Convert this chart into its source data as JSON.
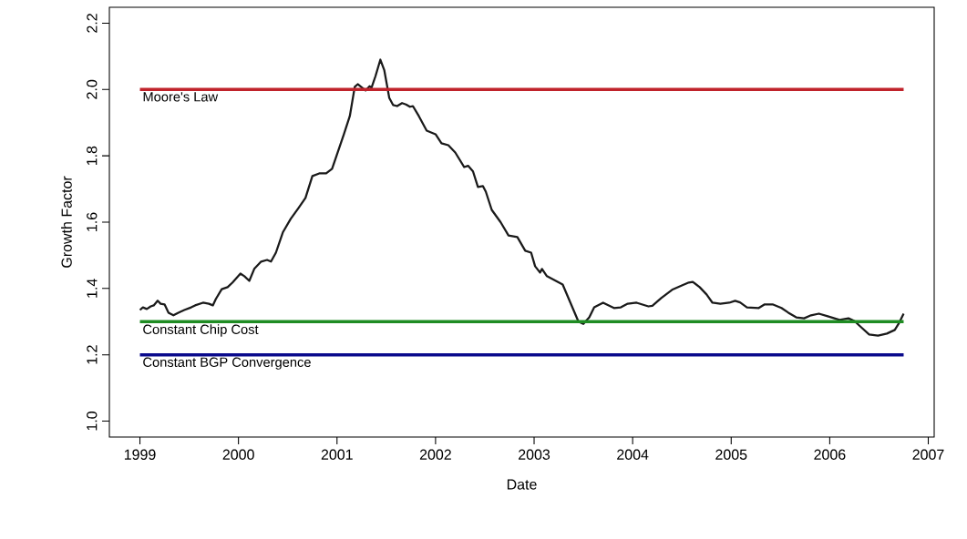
{
  "chart_data": {
    "type": "line",
    "xlabel": "Date",
    "ylabel": "Growth Factor",
    "xlim": [
      1998.69,
      2007.06
    ],
    "ylim": [
      0.952,
      2.248
    ],
    "xticks": [
      1999,
      2000,
      2001,
      2002,
      2003,
      2004,
      2005,
      2006,
      2007
    ],
    "yticks": [
      {
        "value": 1,
        "label": "1.0"
      },
      {
        "value": 1.2,
        "label": "1.2"
      },
      {
        "value": 1.4,
        "label": "1.4"
      },
      {
        "value": 1.6,
        "label": "1.6"
      },
      {
        "value": 1.8,
        "label": "1.8"
      },
      {
        "value": 2,
        "label": "2.0"
      },
      {
        "value": 2.2,
        "label": "2.2"
      }
    ],
    "grid": false,
    "ref_lines": [
      {
        "axis": "y",
        "value": 2.0,
        "label": "Moore's Law",
        "color": "#c0232b"
      },
      {
        "axis": "y",
        "value": 1.3,
        "label": "Constant Chip Cost",
        "color": "#1f8c23"
      },
      {
        "axis": "y",
        "value": 1.2,
        "label": "Constant BGP Convergence",
        "color": "#0a0a8c"
      }
    ],
    "series": [
      {
        "color": "#1a1a1a",
        "x": [
          1999.0,
          1999.03,
          1999.07,
          1999.11,
          1999.14,
          1999.18,
          1999.21,
          1999.25,
          1999.29,
          1999.34,
          1999.39,
          1999.45,
          1999.52,
          1999.56,
          1999.64,
          1999.7,
          1999.74,
          1999.77,
          1999.83,
          1999.89,
          1999.94,
          2000.02,
          2000.06,
          2000.11,
          2000.16,
          2000.23,
          2000.29,
          2000.33,
          2000.38,
          2000.45,
          2000.53,
          2000.61,
          2000.68,
          2000.75,
          2000.82,
          2000.89,
          2000.95,
          2001.07,
          2001.13,
          2001.18,
          2001.21,
          2001.29,
          2001.33,
          2001.35,
          2001.39,
          2001.44,
          2001.48,
          2001.53,
          2001.57,
          2001.61,
          2001.66,
          2001.7,
          2001.74,
          2001.77,
          2001.83,
          2001.91,
          2002.0,
          2002.06,
          2002.13,
          2002.2,
          2002.29,
          2002.33,
          2002.38,
          2002.43,
          2002.48,
          2002.51,
          2002.57,
          2002.66,
          2002.74,
          2002.83,
          2002.91,
          2002.97,
          2003.01,
          2003.06,
          2003.08,
          2003.13,
          2003.29,
          2003.45,
          2003.5,
          2003.56,
          2003.61,
          2003.7,
          2003.81,
          2003.88,
          2003.95,
          2004.04,
          2004.16,
          2004.2,
          2004.29,
          2004.4,
          2004.5,
          2004.57,
          2004.61,
          2004.68,
          2004.75,
          2004.81,
          2004.89,
          2004.98,
          2005.04,
          2005.09,
          2005.16,
          2005.28,
          2005.34,
          2005.42,
          2005.51,
          2005.58,
          2005.66,
          2005.74,
          2005.81,
          2005.89,
          2005.98,
          2006.1,
          2006.19,
          2006.25,
          2006.33,
          2006.4,
          2006.49,
          2006.58,
          2006.66,
          2006.7,
          2006.75
        ],
        "values": [
          1.335,
          1.343,
          1.338,
          1.346,
          1.349,
          1.363,
          1.354,
          1.352,
          1.327,
          1.319,
          1.327,
          1.335,
          1.343,
          1.349,
          1.357,
          1.354,
          1.349,
          1.368,
          1.398,
          1.404,
          1.418,
          1.445,
          1.437,
          1.423,
          1.459,
          1.481,
          1.486,
          1.481,
          1.508,
          1.569,
          1.61,
          1.643,
          1.673,
          1.739,
          1.747,
          1.747,
          1.761,
          1.865,
          1.92,
          2.008,
          2.016,
          1.997,
          2.01,
          2.005,
          2.04,
          2.09,
          2.058,
          1.975,
          1.953,
          1.95,
          1.959,
          1.955,
          1.948,
          1.95,
          1.92,
          1.876,
          1.865,
          1.838,
          1.832,
          1.81,
          1.766,
          1.77,
          1.753,
          1.706,
          1.709,
          1.692,
          1.637,
          1.6,
          1.56,
          1.555,
          1.514,
          1.508,
          1.467,
          1.448,
          1.459,
          1.437,
          1.412,
          1.3,
          1.293,
          1.313,
          1.343,
          1.357,
          1.341,
          1.343,
          1.354,
          1.357,
          1.346,
          1.348,
          1.371,
          1.396,
          1.409,
          1.418,
          1.42,
          1.404,
          1.382,
          1.357,
          1.354,
          1.357,
          1.363,
          1.358,
          1.343,
          1.341,
          1.352,
          1.352,
          1.341,
          1.327,
          1.313,
          1.31,
          1.319,
          1.324,
          1.316,
          1.305,
          1.31,
          1.302,
          1.28,
          1.261,
          1.258,
          1.264,
          1.275,
          1.294,
          1.324
        ]
      }
    ]
  }
}
